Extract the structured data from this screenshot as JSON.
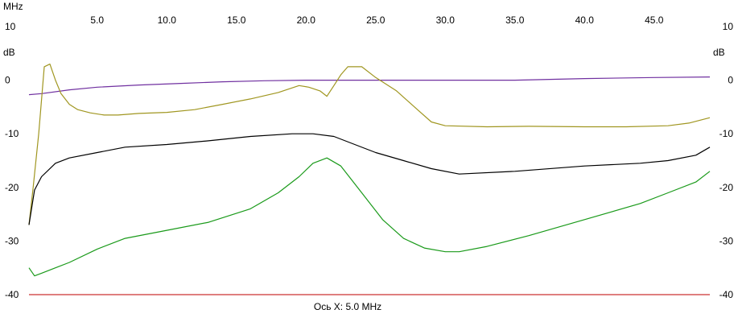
{
  "chart_data": {
    "type": "line",
    "x_unit": "MHz",
    "y_unit": "dB",
    "x_caption": "Ось X: 5.0 MHz",
    "xlim": [
      0.1,
      49.0
    ],
    "ylim": [
      -40,
      10
    ],
    "x_ticks": [
      5.0,
      10.0,
      15.0,
      20.0,
      25.0,
      30.0,
      35.0,
      40.0,
      45.0
    ],
    "y_ticks": [
      10,
      0,
      -10,
      -20,
      -30,
      -40
    ],
    "grid": false,
    "legend": "none",
    "series": [
      {
        "color": "#7030a0",
        "x": [
          0.1,
          1.0,
          3.0,
          5.0,
          8.0,
          11.0,
          14.0,
          17.0,
          20.0,
          23.0,
          26.0,
          30.0,
          35.0,
          40.0,
          45.0,
          49.0
        ],
        "y": [
          -2.7,
          -2.5,
          -1.8,
          -1.3,
          -0.9,
          -0.6,
          -0.3,
          -0.1,
          0.0,
          0.0,
          0.0,
          0.0,
          0.0,
          0.3,
          0.5,
          0.6
        ]
      },
      {
        "color": "#a09620",
        "x": [
          0.1,
          0.4,
          0.8,
          1.2,
          1.6,
          2.0,
          2.4,
          3.0,
          3.6,
          4.5,
          5.5,
          6.5,
          8.0,
          10.0,
          12.0,
          14.0,
          16.0,
          18.0,
          19.5,
          20.2,
          21.0,
          21.5,
          22.0,
          22.5,
          23.0,
          24.0,
          25.0,
          26.5,
          28.0,
          29.0,
          30.0,
          33.0,
          36.0,
          40.0,
          43.0,
          46.0,
          47.5,
          49.0
        ],
        "y": [
          -27.0,
          -20.0,
          -10.0,
          2.5,
          3.0,
          0.0,
          -2.5,
          -4.5,
          -5.5,
          -6.1,
          -6.5,
          -6.5,
          -6.2,
          -6.0,
          -5.5,
          -4.5,
          -3.5,
          -2.3,
          -1.0,
          -1.3,
          -2.0,
          -3.0,
          -1.0,
          1.0,
          2.5,
          2.5,
          0.5,
          -2.0,
          -5.5,
          -7.8,
          -8.5,
          -8.7,
          -8.6,
          -8.7,
          -8.7,
          -8.5,
          -8.0,
          -7.0
        ]
      },
      {
        "color": "#000000",
        "x": [
          0.1,
          0.5,
          1.0,
          2.0,
          3.0,
          5.0,
          7.0,
          10.0,
          13.0,
          16.0,
          19.0,
          20.5,
          22.0,
          23.5,
          25.0,
          27.0,
          29.0,
          31.0,
          35.0,
          40.0,
          44.0,
          46.0,
          48.0,
          49.0
        ],
        "y": [
          -27.0,
          -20.5,
          -18.0,
          -15.5,
          -14.5,
          -13.5,
          -12.5,
          -12.0,
          -11.3,
          -10.5,
          -10.0,
          -10.0,
          -10.5,
          -12.0,
          -13.5,
          -15.0,
          -16.5,
          -17.5,
          -17.0,
          -16.0,
          -15.5,
          -15.0,
          -14.0,
          -12.5
        ]
      },
      {
        "color": "#1a9a1a",
        "x": [
          0.1,
          0.5,
          1.0,
          2.0,
          3.0,
          5.0,
          7.0,
          10.0,
          13.0,
          16.0,
          18.0,
          19.5,
          20.5,
          21.5,
          22.5,
          24.0,
          25.5,
          27.0,
          28.5,
          30.0,
          31.0,
          33.0,
          36.0,
          40.0,
          44.0,
          46.0,
          48.0,
          49.0
        ],
        "y": [
          -35.0,
          -36.5,
          -36.0,
          -35.0,
          -34.0,
          -31.5,
          -29.5,
          -28.0,
          -26.5,
          -24.0,
          -21.0,
          -18.0,
          -15.5,
          -14.5,
          -16.0,
          -21.0,
          -26.0,
          -29.5,
          -31.3,
          -32.0,
          -32.0,
          -31.0,
          -29.0,
          -26.0,
          -23.0,
          -21.0,
          -19.0,
          -17.0
        ]
      },
      {
        "color": "#cc3333",
        "x": [
          0.1,
          49.0
        ],
        "y": [
          -40.0,
          -40.0
        ]
      }
    ]
  }
}
